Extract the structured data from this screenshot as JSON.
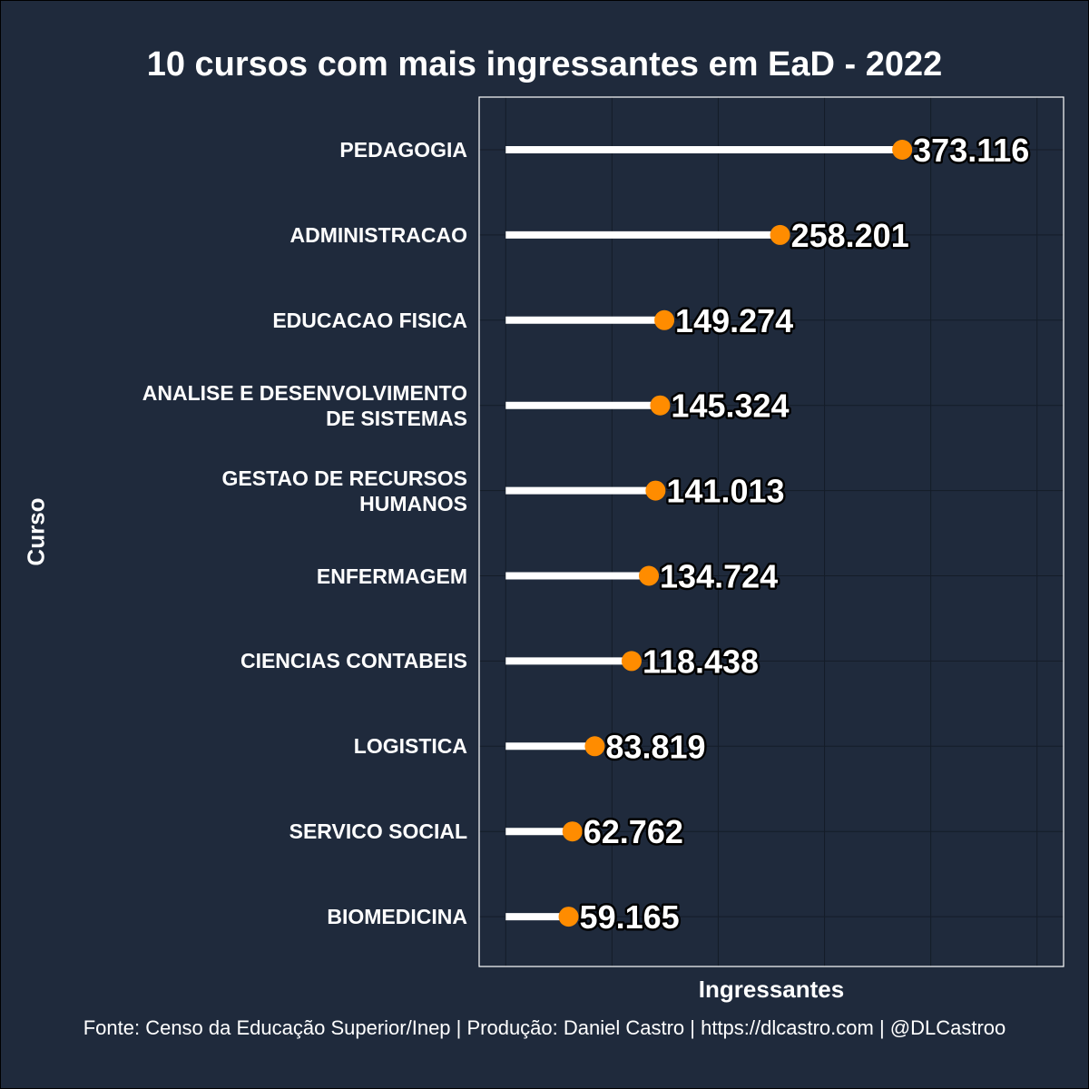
{
  "chart_data": {
    "type": "lollipop",
    "title": "10 cursos com mais ingressantes em EaD - 2022",
    "xlabel": "Ingressantes",
    "ylabel": "Curso",
    "caption": "Fonte: Censo da Educação Superior/Inep | Produção: Daniel Castro | https://dlcastro.com | @DLCastroo",
    "categories": [
      "PEDAGOGIA",
      "ADMINISTRACAO",
      "EDUCACAO FISICA",
      "ANALISE E DESENVOLVIMENTO DE SISTEMAS",
      "GESTAO DE RECURSOS HUMANOS",
      "ENFERMAGEM",
      "CIENCIAS CONTABEIS",
      "LOGISTICA",
      "SERVICO SOCIAL",
      "BIOMEDICINA"
    ],
    "category_lines": [
      [
        "PEDAGOGIA"
      ],
      [
        "ADMINISTRACAO"
      ],
      [
        "EDUCACAO FISICA"
      ],
      [
        "ANALISE E DESENVOLVIMENTO",
        "DE SISTEMAS"
      ],
      [
        "GESTAO DE RECURSOS",
        "HUMANOS"
      ],
      [
        "ENFERMAGEM"
      ],
      [
        "CIENCIAS CONTABEIS"
      ],
      [
        "LOGISTICA"
      ],
      [
        "SERVICO SOCIAL"
      ],
      [
        "BIOMEDICINA"
      ]
    ],
    "values": [
      373116,
      258201,
      149274,
      145324,
      141013,
      134724,
      118438,
      83819,
      62762,
      59165
    ],
    "value_labels": [
      "373.116",
      "258.201",
      "149.274",
      "145.324",
      "141.013",
      "134.724",
      "118.438",
      "83.819",
      "62.762",
      "59.165"
    ],
    "xlim": [
      -25000,
      525000
    ],
    "x_gridlines": [
      0,
      100000,
      200000,
      300000,
      400000,
      500000
    ],
    "x_tick_labels_shown": false,
    "grid": true,
    "colors": {
      "background": "#1f2a3c",
      "stem": "#ffffff",
      "point": "#ff8c00",
      "grid": "#141c28",
      "panel_border": "#ffffff",
      "text": "#ffffff"
    }
  }
}
